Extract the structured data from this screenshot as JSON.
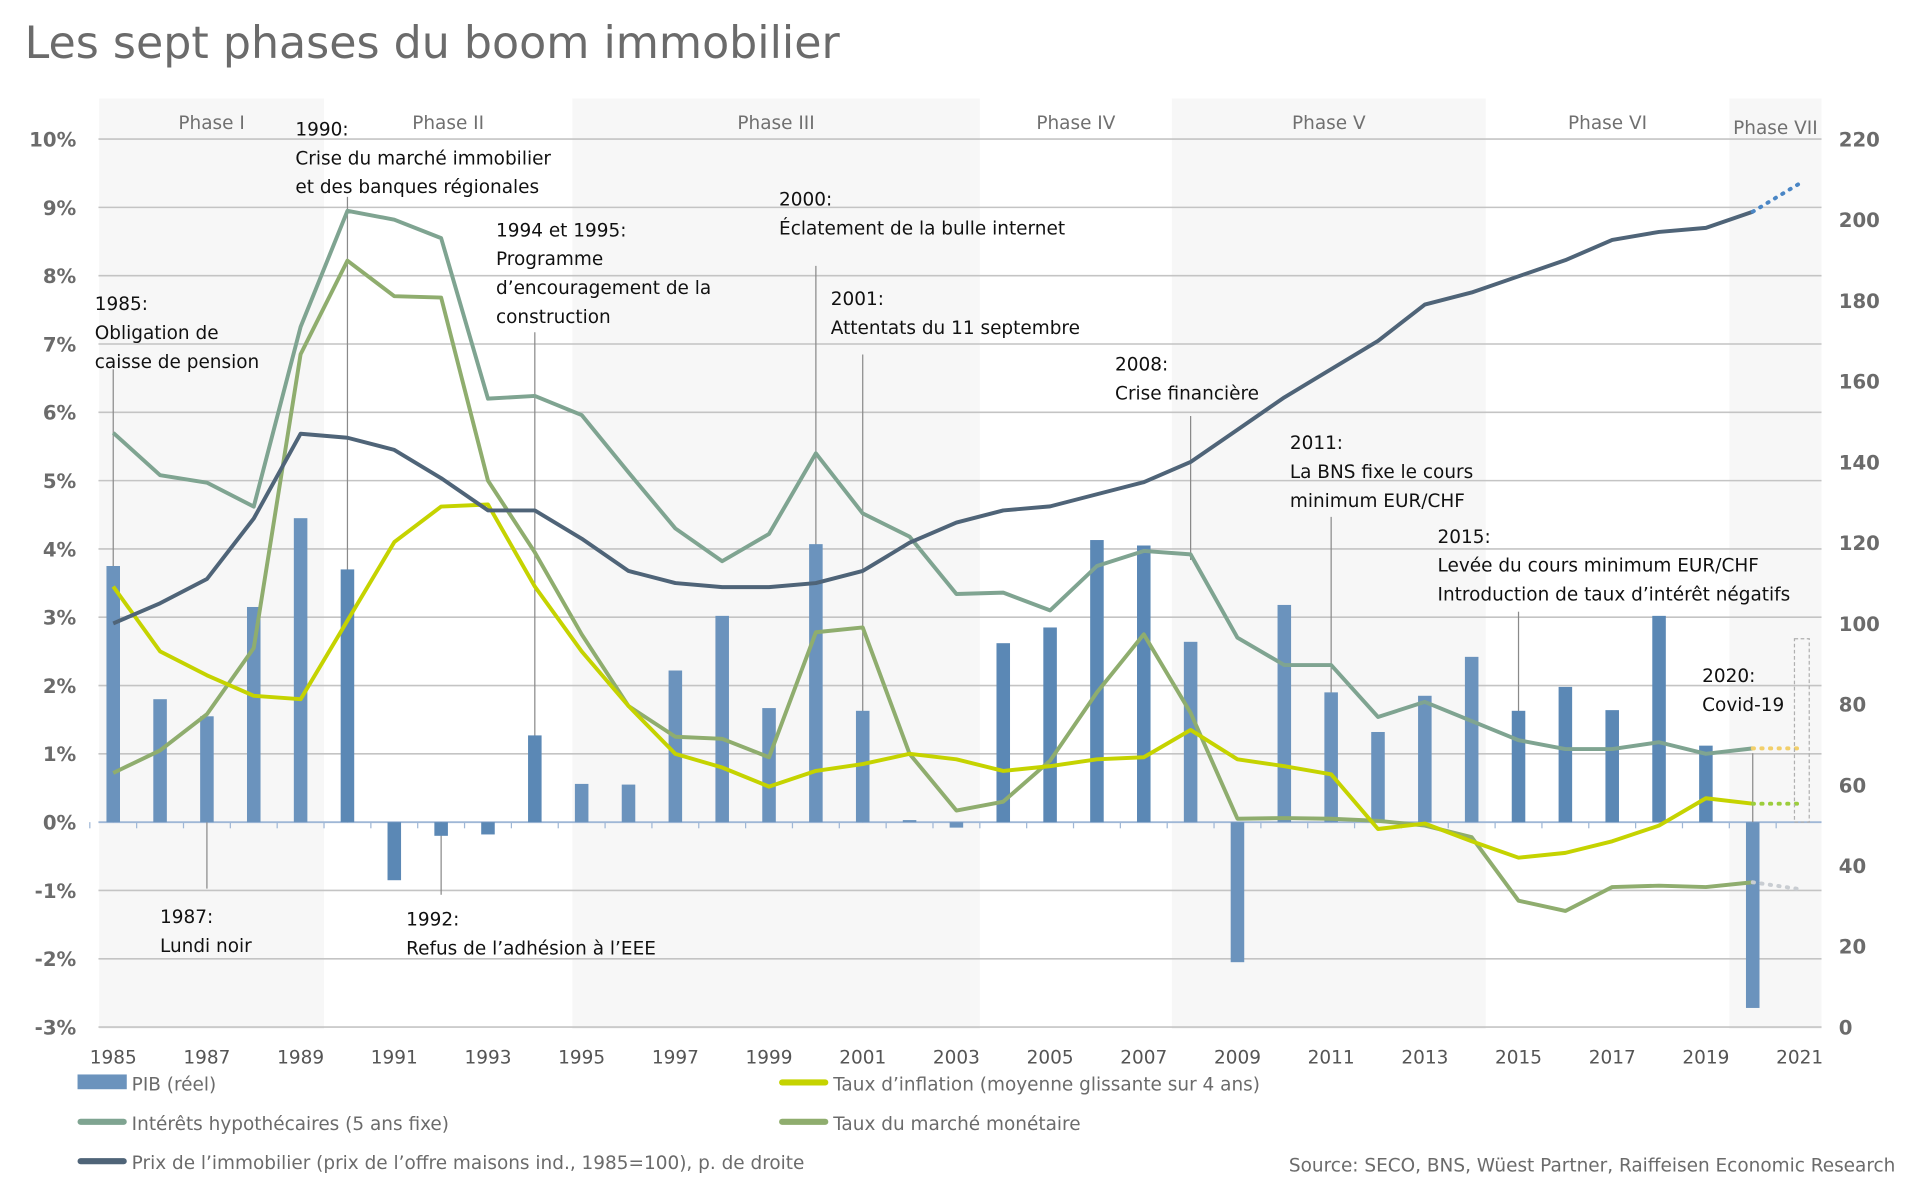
{
  "chart_data": {
    "type": "bar+line",
    "title": "Les sept phases du boom immobilier",
    "source": "Source: SECO, BNS, Wüest Partner, Raiffeisen Economic Research",
    "x": [
      1985,
      1986,
      1987,
      1988,
      1989,
      1990,
      1991,
      1992,
      1993,
      1994,
      1995,
      1996,
      1997,
      1998,
      1999,
      2000,
      2001,
      2002,
      2003,
      2004,
      2005,
      2006,
      2007,
      2008,
      2009,
      2010,
      2011,
      2012,
      2013,
      2014,
      2015,
      2016,
      2017,
      2018,
      2019,
      2020
    ],
    "x_ticks": [
      "1985",
      "1987",
      "1989",
      "1991",
      "1993",
      "1995",
      "1997",
      "1999",
      "2001",
      "2003",
      "2005",
      "2007",
      "2009",
      "2011",
      "2013",
      "2015",
      "2017",
      "2019",
      "2021"
    ],
    "xlim": [
      1985,
      2021
    ],
    "y_left": {
      "ticks": [
        "-3%",
        "-2%",
        "-1%",
        "0%",
        "1%",
        "2%",
        "3%",
        "4%",
        "5%",
        "6%",
        "7%",
        "8%",
        "9%",
        "10%"
      ],
      "ylim": [
        -3,
        10
      ],
      "unit": "%"
    },
    "y_right": {
      "ticks": [
        "0",
        "20",
        "40",
        "60",
        "80",
        "100",
        "120",
        "140",
        "160",
        "180",
        "200",
        "220"
      ],
      "ylim": [
        0,
        220
      ]
    },
    "grid": true,
    "phases": [
      {
        "label": "Phase I",
        "from": 1984.7,
        "to": 1989.5,
        "shaded": true
      },
      {
        "label": "Phase II",
        "from": 1989.5,
        "to": 1994.8,
        "shaded": false
      },
      {
        "label": "Phase III",
        "from": 1994.8,
        "to": 2003.5,
        "shaded": true
      },
      {
        "label": "Phase IV",
        "from": 2003.5,
        "to": 2007.6,
        "shaded": false
      },
      {
        "label": "Phase V",
        "from": 2007.6,
        "to": 2014.3,
        "shaded": true
      },
      {
        "label": "Phase VI",
        "from": 2014.3,
        "to": 2019.5,
        "shaded": false
      },
      {
        "label": "Phase VII",
        "from": 2019.5,
        "to": 2021.6,
        "shaded": true
      }
    ],
    "series": [
      {
        "name": "PIB (réel)",
        "type": "bar",
        "axis": "left",
        "color": "#6b93bd",
        "values": [
          3.75,
          1.8,
          1.55,
          3.15,
          4.45,
          3.7,
          -0.85,
          -0.2,
          -0.18,
          1.27,
          0.56,
          0.55,
          2.22,
          3.02,
          1.67,
          4.07,
          1.63,
          0.03,
          -0.08,
          2.62,
          2.85,
          4.13,
          4.05,
          2.64,
          -2.05,
          3.18,
          1.9,
          1.32,
          1.85,
          2.42,
          1.63,
          1.98,
          1.64,
          3.02,
          1.12,
          -2.72
        ]
      },
      {
        "name": "Taux d’inflation (moyenne glissante sur 4 ans)",
        "type": "line",
        "axis": "left",
        "color": "#c5d300",
        "values": [
          3.45,
          2.5,
          2.15,
          1.85,
          1.8,
          2.95,
          4.1,
          4.62,
          4.65,
          3.45,
          2.5,
          1.7,
          1.0,
          0.8,
          0.52,
          0.75,
          0.85,
          1.0,
          0.92,
          0.75,
          0.82,
          0.92,
          0.95,
          1.35,
          0.92,
          0.82,
          0.7,
          -0.1,
          -0.02,
          -0.28,
          -0.52,
          -0.45,
          -0.28,
          -0.05,
          0.35,
          0.27
        ],
        "forecast": [
          0.27,
          0.27
        ]
      },
      {
        "name": "Intérêts hypothécaires (5 ans fixe)",
        "type": "line",
        "axis": "left",
        "color": "#7fa491",
        "values": [
          5.7,
          5.08,
          4.97,
          4.62,
          7.25,
          8.95,
          8.82,
          8.55,
          6.2,
          6.24,
          5.96,
          5.12,
          4.3,
          3.82,
          4.22,
          5.4,
          4.52,
          4.18,
          3.34,
          3.36,
          3.1,
          3.75,
          3.97,
          3.92,
          2.7,
          2.3,
          2.3,
          1.54,
          1.76,
          1.48,
          1.2,
          1.07,
          1.07,
          1.17,
          1.0,
          1.08
        ],
        "forecast": [
          1.08,
          1.08
        ]
      },
      {
        "name": "Taux du marché monétaire",
        "type": "line",
        "axis": "left",
        "color": "#8fad6e",
        "values": [
          0.72,
          1.05,
          1.58,
          2.55,
          6.85,
          8.22,
          7.7,
          7.68,
          5.0,
          3.95,
          2.75,
          1.7,
          1.25,
          1.22,
          0.95,
          2.78,
          2.85,
          1.0,
          0.17,
          0.3,
          0.9,
          1.9,
          2.75,
          1.6,
          0.05,
          0.06,
          0.05,
          0.02,
          -0.05,
          -0.22,
          -1.15,
          -1.3,
          -0.95,
          -0.93,
          -0.95,
          -0.88
        ],
        "forecast": [
          -0.88,
          -0.98
        ]
      },
      {
        "name": "Prix de l’immobilier (prix de l’offre maisons ind., 1985=100), p. de droite",
        "type": "line",
        "axis": "right",
        "color": "#4f6478",
        "values": [
          100,
          105,
          111,
          126,
          147,
          146,
          143,
          136,
          128,
          128,
          121,
          113,
          110,
          109,
          109,
          110,
          113,
          120,
          125,
          128,
          129,
          132,
          135,
          140,
          148,
          156,
          163,
          170,
          179,
          182,
          186,
          190,
          195,
          197,
          198,
          202
        ],
        "forecast": [
          202,
          209
        ]
      }
    ],
    "annotations": [
      {
        "year": 1985,
        "lines": [
          "1985:",
          "Obligation de",
          "caisse de pension"
        ]
      },
      {
        "year": 1987,
        "lines": [
          "1987:",
          "Lundi noir"
        ]
      },
      {
        "year": 1990,
        "lines": [
          "1990:",
          "Crise du marché immobilier",
          "et des banques régionales"
        ]
      },
      {
        "year": 1992,
        "lines": [
          "1992:",
          "Refus de l’adhésion à l’EEE"
        ]
      },
      {
        "year": 1994,
        "lines": [
          "1994 et 1995:",
          "Programme",
          "d’encouragement de la",
          "construction"
        ]
      },
      {
        "year": 2000,
        "lines": [
          "2000:",
          "Éclatement de la bulle internet"
        ]
      },
      {
        "year": 2001,
        "lines": [
          "2001:",
          "Attentats du 11 septembre"
        ]
      },
      {
        "year": 2008,
        "lines": [
          "2008:",
          "Crise financière"
        ]
      },
      {
        "year": 2011,
        "lines": [
          "2011:",
          "La BNS fixe le cours",
          "minimum EUR/CHF"
        ]
      },
      {
        "year": 2015,
        "lines": [
          "2015:",
          "Levée du cours minimum EUR/CHF",
          "Introduction de taux d’intérêt négatifs"
        ]
      },
      {
        "year": 2020,
        "lines": [
          "2020:",
          "Covid-19"
        ]
      }
    ],
    "legend": [
      {
        "label": "PIB (réel)",
        "swatch": "box",
        "color": "#6b93bd"
      },
      {
        "label": "Taux d’inflation (moyenne glissante sur 4 ans)",
        "swatch": "line",
        "color": "#c5d300"
      },
      {
        "label": "Intérêts hypothécaires (5 ans fixe)",
        "swatch": "line",
        "color": "#7fa491"
      },
      {
        "label": "Taux du marché monétaire",
        "swatch": "line",
        "color": "#8fad6e"
      },
      {
        "label": "Prix de l’immobilier (prix de l’offre maisons ind., 1985=100), p. de droite",
        "swatch": "line",
        "color": "#4f6478"
      }
    ],
    "legend_position": "bottom"
  }
}
